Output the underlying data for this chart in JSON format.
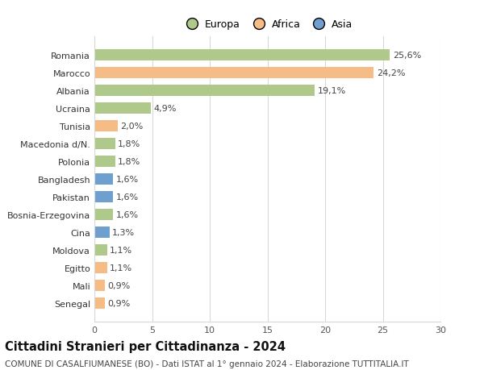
{
  "categories": [
    "Senegal",
    "Mali",
    "Egitto",
    "Moldova",
    "Cina",
    "Bosnia-Erzegovina",
    "Pakistan",
    "Bangladesh",
    "Polonia",
    "Macedonia d/N.",
    "Tunisia",
    "Ucraina",
    "Albania",
    "Marocco",
    "Romania"
  ],
  "values": [
    0.9,
    0.9,
    1.1,
    1.1,
    1.3,
    1.6,
    1.6,
    1.6,
    1.8,
    1.8,
    2.0,
    4.9,
    19.1,
    24.2,
    25.6
  ],
  "labels": [
    "0,9%",
    "0,9%",
    "1,1%",
    "1,1%",
    "1,3%",
    "1,6%",
    "1,6%",
    "1,6%",
    "1,8%",
    "1,8%",
    "2,0%",
    "4,9%",
    "19,1%",
    "24,2%",
    "25,6%"
  ],
  "continents": [
    "Africa",
    "Africa",
    "Africa",
    "Europa",
    "Asia",
    "Europa",
    "Asia",
    "Asia",
    "Europa",
    "Europa",
    "Africa",
    "Europa",
    "Europa",
    "Africa",
    "Europa"
  ],
  "colors": {
    "Europa": "#aec98a",
    "Africa": "#f5bc85",
    "Asia": "#6e9fcf"
  },
  "legend_labels": [
    "Europa",
    "Africa",
    "Asia"
  ],
  "legend_colors": [
    "#aec98a",
    "#f5bc85",
    "#6e9fcf"
  ],
  "title": "Cittadini Stranieri per Cittadinanza - 2024",
  "subtitle": "COMUNE DI CASALFIUMANESE (BO) - Dati ISTAT al 1° gennaio 2024 - Elaborazione TUTTITALIA.IT",
  "xlim": [
    0,
    30
  ],
  "xticks": [
    0,
    5,
    10,
    15,
    20,
    25,
    30
  ],
  "background_color": "#ffffff",
  "grid_color": "#d8d8d8",
  "bar_height": 0.65,
  "label_fontsize": 8,
  "title_fontsize": 10.5,
  "subtitle_fontsize": 7.5,
  "tick_fontsize": 8,
  "legend_fontsize": 9
}
